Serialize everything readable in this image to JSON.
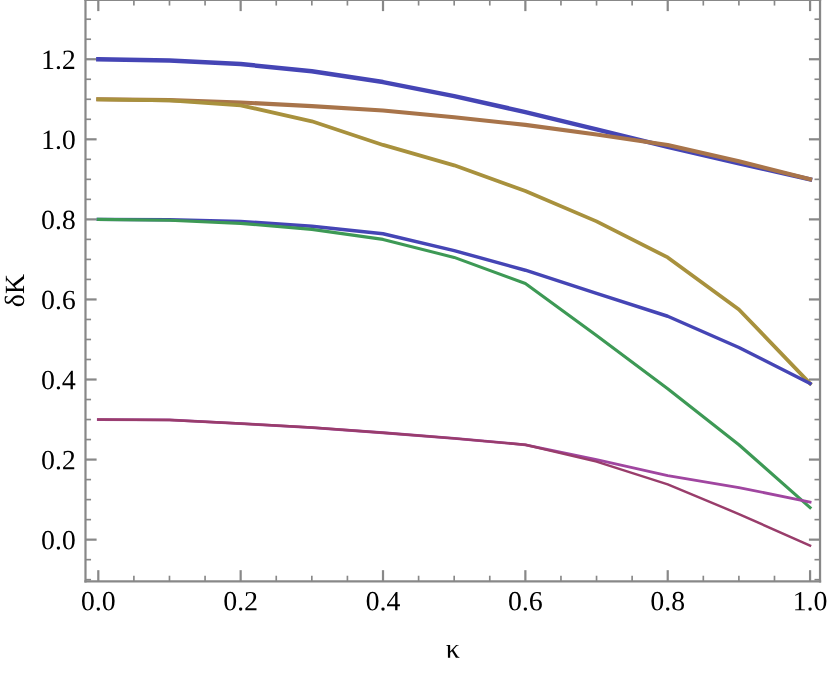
{
  "chart_data": {
    "type": "line",
    "xlabel": "κ",
    "ylabel": "δK",
    "x": [
      0,
      0.1,
      0.2,
      0.3,
      0.4,
      0.5,
      0.6,
      0.7,
      0.8,
      0.9,
      1.0
    ],
    "series": [
      {
        "color": "#4545b5",
        "values": [
          1.2,
          1.197,
          1.188,
          1.17,
          1.143,
          1.108,
          1.068,
          1.025,
          0.981,
          0.94,
          0.9
        ]
      },
      {
        "color": "#a8744a",
        "values": [
          1.1,
          1.098,
          1.092,
          1.083,
          1.072,
          1.055,
          1.036,
          1.012,
          0.986,
          0.945,
          0.9
        ]
      },
      {
        "color": "#a8913d",
        "values": [
          1.1,
          1.097,
          1.085,
          1.045,
          0.986,
          0.935,
          0.871,
          0.795,
          0.705,
          0.575,
          0.39
        ]
      },
      {
        "color": "#4545b5",
        "values": [
          0.8,
          0.799,
          0.795,
          0.783,
          0.764,
          0.722,
          0.673,
          0.615,
          0.558,
          0.48,
          0.39
        ]
      },
      {
        "color": "#3d9955",
        "values": [
          0.8,
          0.798,
          0.79,
          0.775,
          0.75,
          0.705,
          0.64,
          0.51,
          0.377,
          0.237,
          0.08
        ]
      },
      {
        "color": "#a046a0",
        "values": [
          0.3,
          0.299,
          0.29,
          0.28,
          0.267,
          0.253,
          0.237,
          0.2,
          0.16,
          0.13,
          0.094
        ]
      },
      {
        "color": "#993d6b",
        "values": [
          0.3,
          0.299,
          0.29,
          0.28,
          0.267,
          0.253,
          0.237,
          0.195,
          0.138,
          0.064,
          -0.015
        ]
      }
    ],
    "xlim": [
      -0.018,
      1.014
    ],
    "ylim": [
      -0.104,
      1.348
    ],
    "xticks": [
      {
        "value": 0,
        "label": "0.0"
      },
      0.2,
      0.4,
      0.6,
      0.8,
      {
        "value": 1,
        "label": "1.0"
      }
    ],
    "yticks": [
      {
        "value": 0,
        "label": "0.0"
      },
      0.2,
      0.4,
      0.6,
      0.8,
      {
        "value": 1,
        "label": "1.0"
      },
      1.2
    ],
    "grid": false,
    "marker": "none",
    "line_style": "solid"
  }
}
